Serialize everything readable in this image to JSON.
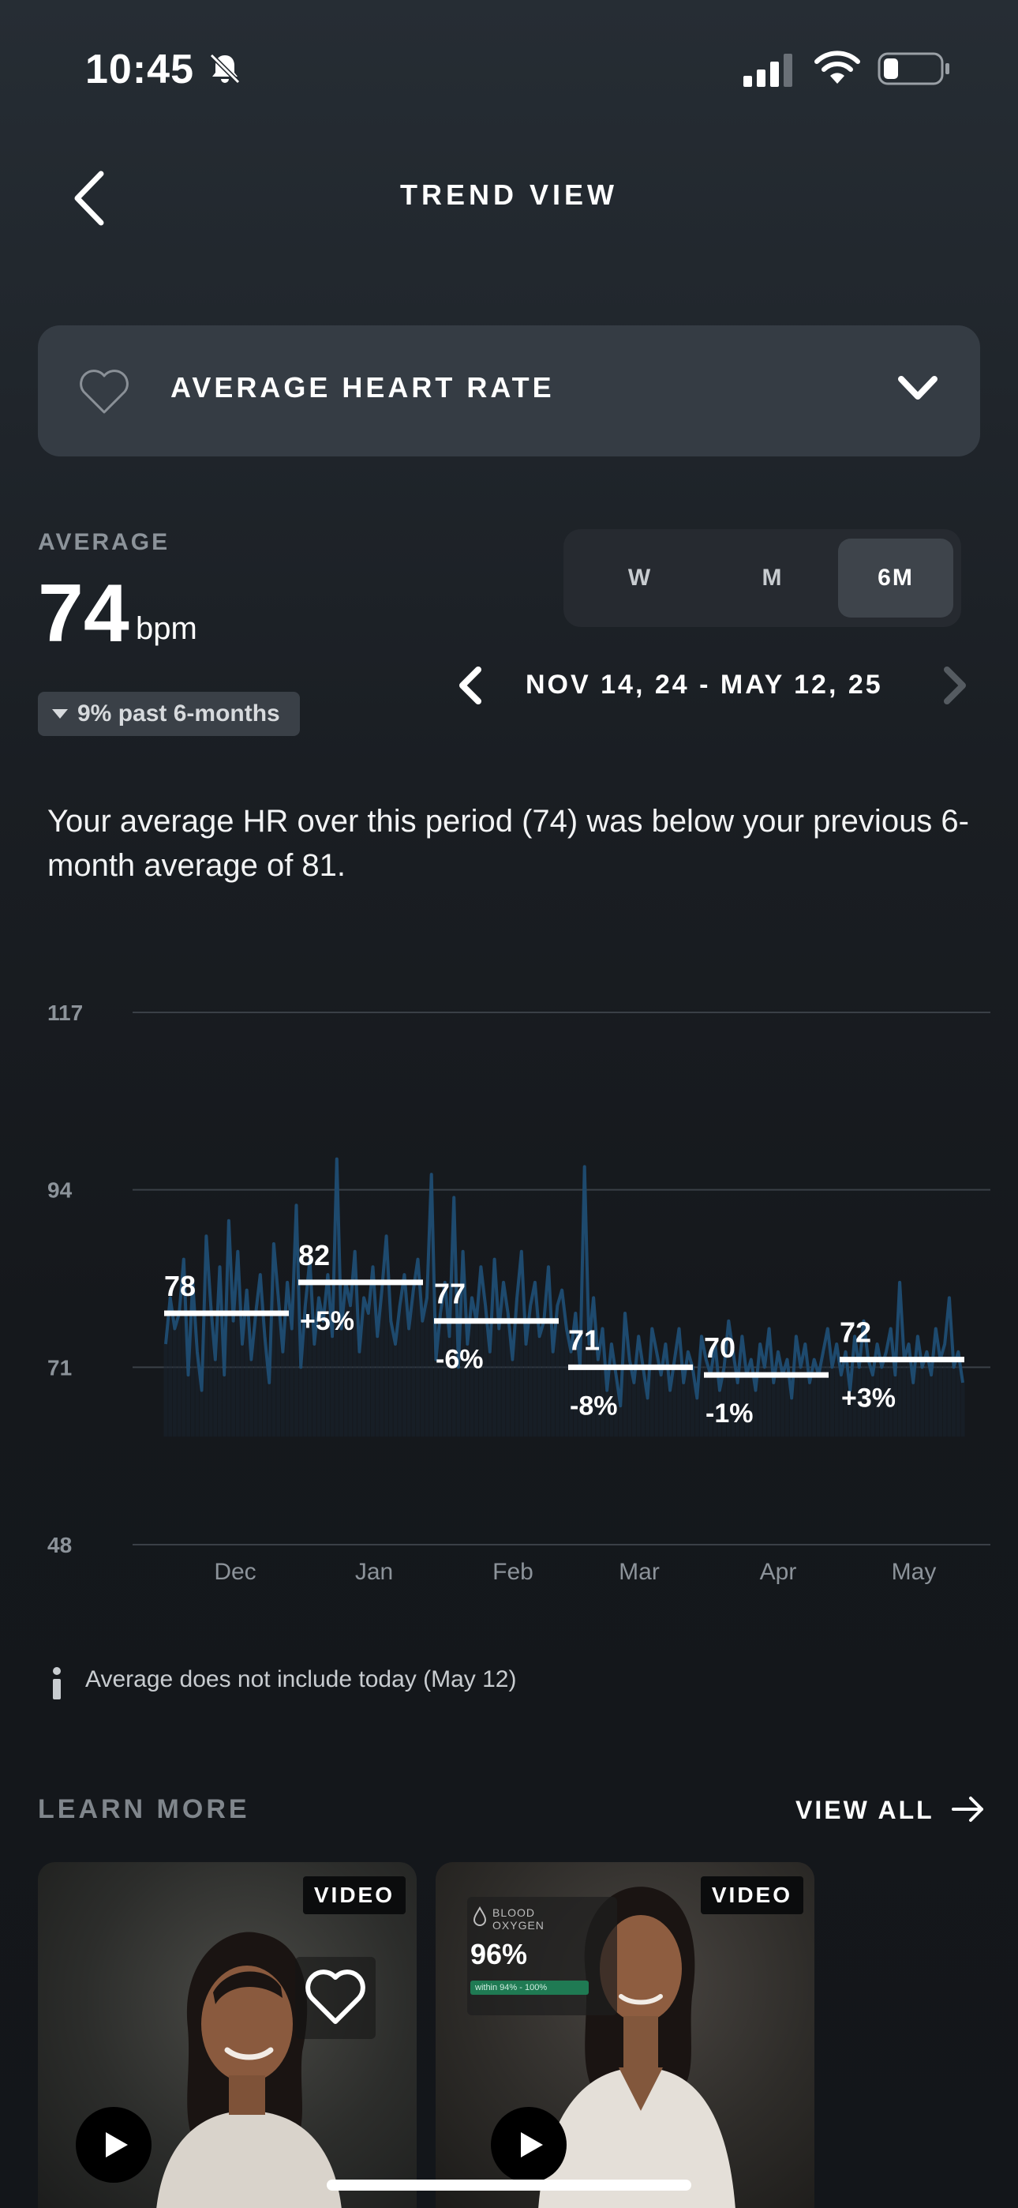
{
  "status_bar": {
    "time": "10:45"
  },
  "header": {
    "title": "TREND VIEW"
  },
  "metric_selector": {
    "label": "AVERAGE HEART RATE"
  },
  "average": {
    "label": "AVERAGE",
    "value": "74",
    "unit": "bpm",
    "change_text": "9% past 6-months"
  },
  "range_toggle": {
    "options": [
      "W",
      "M",
      "6M"
    ],
    "selected": "6M"
  },
  "date_range": {
    "label": "NOV 14, 24 - MAY 12, 25"
  },
  "summary": "Your average HR over this period (74) was below your previous 6-month average of 81.",
  "chart_data": {
    "type": "line",
    "y_ticks": [
      "117",
      "94",
      "71",
      "48"
    ],
    "ylim": [
      48,
      117
    ],
    "x_labels": [
      "Dec",
      "Jan",
      "Feb",
      "Mar",
      "Apr",
      "May"
    ],
    "grid": true,
    "series_color": "#1e4a6e",
    "monthly_averages": [
      {
        "value": 78,
        "label": "78",
        "change": ""
      },
      {
        "value": 82,
        "label": "82",
        "change": "+5%"
      },
      {
        "value": 77,
        "label": "77",
        "change": "-6%"
      },
      {
        "value": 71,
        "label": "71",
        "change": "-8%"
      },
      {
        "value": 70,
        "label": "70",
        "change": "-1%"
      },
      {
        "value": 72,
        "label": "72",
        "change": "+3%"
      }
    ],
    "daily_values": [
      74,
      80,
      76,
      78,
      85,
      70,
      82,
      73,
      68,
      88,
      79,
      72,
      84,
      70,
      90,
      77,
      86,
      74,
      81,
      72,
      78,
      83,
      75,
      69,
      87,
      80,
      73,
      82,
      76,
      92,
      71,
      79,
      85,
      74,
      80,
      77,
      83,
      75,
      98,
      76,
      82,
      79,
      86,
      73,
      80,
      78,
      84,
      75,
      81,
      88,
      77,
      74,
      79,
      83,
      76,
      81,
      85,
      77,
      80,
      96,
      72,
      78,
      82,
      75,
      93,
      71,
      86,
      74,
      80,
      77,
      84,
      79,
      73,
      85,
      76,
      82,
      78,
      72,
      80,
      86,
      74,
      79,
      82,
      75,
      77,
      84,
      73,
      79,
      81,
      76,
      73,
      78,
      71,
      97,
      74,
      80,
      72,
      76,
      68,
      74,
      70,
      66,
      78,
      72,
      69,
      75,
      71,
      67,
      76,
      73,
      70,
      74,
      68,
      72,
      76,
      69,
      73,
      71,
      67,
      75,
      72,
      70,
      74,
      68,
      71,
      77,
      73,
      69,
      75,
      70,
      72,
      68,
      74,
      71,
      76,
      69,
      73,
      70,
      72,
      67,
      75,
      71,
      74,
      69,
      72,
      70,
      73,
      76,
      71,
      74,
      70,
      73,
      68,
      75,
      71,
      77,
      72,
      70,
      74,
      71,
      73,
      76,
      70,
      82,
      72,
      74,
      69,
      75,
      71,
      73,
      70,
      76,
      72,
      74,
      80,
      71,
      73,
      69
    ]
  },
  "note": "Average does not include today (May 12)",
  "learn_more": {
    "title": "LEARN MORE",
    "view_all": "VIEW ALL",
    "cards": [
      {
        "badge": "VIDEO"
      },
      {
        "badge": "VIDEO",
        "overlay_label": "BLOOD OXYGEN",
        "overlay_value": "96%",
        "overlay_bar": "within 94% - 100%"
      }
    ]
  }
}
